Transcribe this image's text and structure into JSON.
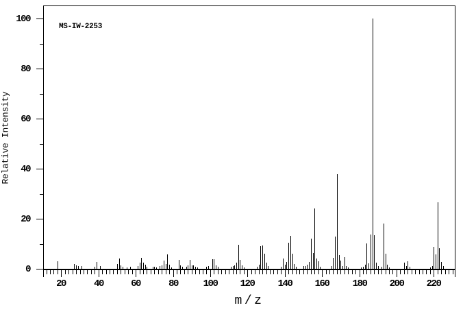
{
  "chart_data": {
    "type": "bar",
    "subtype": "mass-spectrum-stick-plot",
    "title": "MS-IW-2253",
    "xlabel": "m/z",
    "ylabel": "Relative Intensity",
    "xlim": [
      10,
      231
    ],
    "ylim": [
      0,
      105
    ],
    "x_major_ticks": [
      20,
      40,
      60,
      80,
      100,
      120,
      140,
      160,
      180,
      200,
      220
    ],
    "x_minor_step": 2,
    "y_major_ticks": [
      0,
      20,
      40,
      60,
      80,
      100
    ],
    "y_minor_step": 10,
    "grid": false,
    "legend": false,
    "base_peak_mz": 187,
    "peaks": [
      [
        18,
        3.0
      ],
      [
        27,
        2.0
      ],
      [
        28,
        1.4
      ],
      [
        29,
        1.0
      ],
      [
        31,
        1.0
      ],
      [
        38,
        0.8
      ],
      [
        39,
        2.7
      ],
      [
        41,
        1.2
      ],
      [
        50,
        1.9
      ],
      [
        51,
        4.1
      ],
      [
        52,
        1.4
      ],
      [
        53,
        0.7
      ],
      [
        55,
        0.6
      ],
      [
        57,
        0.7
      ],
      [
        61,
        1.0
      ],
      [
        62,
        2.4
      ],
      [
        63,
        4.3
      ],
      [
        64,
        2.6
      ],
      [
        65,
        1.7
      ],
      [
        66,
        0.9
      ],
      [
        69,
        0.7
      ],
      [
        70,
        0.9
      ],
      [
        71,
        0.6
      ],
      [
        73,
        1.1
      ],
      [
        74,
        1.4
      ],
      [
        75,
        3.4
      ],
      [
        76,
        2.0
      ],
      [
        77,
        5.8
      ],
      [
        78,
        1.7
      ],
      [
        79,
        0.6
      ],
      [
        83,
        3.5
      ],
      [
        84,
        1.4
      ],
      [
        85,
        0.8
      ],
      [
        87,
        0.9
      ],
      [
        88,
        1.5
      ],
      [
        89,
        3.6
      ],
      [
        90,
        1.5
      ],
      [
        91,
        1.4
      ],
      [
        92,
        0.9
      ],
      [
        93,
        0.6
      ],
      [
        98,
        0.7
      ],
      [
        99,
        1.0
      ],
      [
        101,
        3.9
      ],
      [
        102,
        3.9
      ],
      [
        103,
        1.5
      ],
      [
        104,
        0.7
      ],
      [
        111,
        0.7
      ],
      [
        112,
        1.0
      ],
      [
        113,
        1.5
      ],
      [
        114,
        2.6
      ],
      [
        115,
        9.5
      ],
      [
        116,
        3.6
      ],
      [
        117,
        1.3
      ],
      [
        118,
        0.6
      ],
      [
        125,
        0.9
      ],
      [
        126,
        1.6
      ],
      [
        127,
        9.0
      ],
      [
        128,
        9.3
      ],
      [
        129,
        6.0
      ],
      [
        130,
        2.6
      ],
      [
        131,
        1.1
      ],
      [
        138,
        0.8
      ],
      [
        139,
        4.2
      ],
      [
        140,
        1.7
      ],
      [
        141,
        2.7
      ],
      [
        142,
        10.5
      ],
      [
        143,
        13.1
      ],
      [
        144,
        6.0
      ],
      [
        145,
        1.9
      ],
      [
        146,
        0.7
      ],
      [
        150,
        1.1
      ],
      [
        151,
        1.0
      ],
      [
        152,
        1.6
      ],
      [
        153,
        2.8
      ],
      [
        154,
        12.0
      ],
      [
        155,
        6.4
      ],
      [
        156,
        24.1
      ],
      [
        157,
        4.1
      ],
      [
        158,
        3.0
      ],
      [
        159,
        0.9
      ],
      [
        165,
        1.0
      ],
      [
        166,
        4.5
      ],
      [
        167,
        12.8
      ],
      [
        168,
        37.8
      ],
      [
        169,
        5.5
      ],
      [
        170,
        3.2
      ],
      [
        171,
        1.0
      ],
      [
        172,
        4.6
      ],
      [
        173,
        1.2
      ],
      [
        174,
        0.6
      ],
      [
        181,
        0.5
      ],
      [
        182,
        0.7
      ],
      [
        183,
        1.7
      ],
      [
        184,
        10.1
      ],
      [
        185,
        2.2
      ],
      [
        186,
        13.6
      ],
      [
        187,
        100.0
      ],
      [
        188,
        13.4
      ],
      [
        189,
        2.6
      ],
      [
        190,
        1.1
      ],
      [
        192,
        0.8
      ],
      [
        193,
        18.2
      ],
      [
        194,
        6.0
      ],
      [
        195,
        1.7
      ],
      [
        196,
        0.5
      ],
      [
        204,
        2.6
      ],
      [
        205,
        1.1
      ],
      [
        206,
        3.0
      ],
      [
        207,
        0.8
      ],
      [
        218,
        0.6
      ],
      [
        219,
        1.1
      ],
      [
        220,
        8.7
      ],
      [
        221,
        5.8
      ],
      [
        222,
        26.6
      ],
      [
        223,
        8.2
      ],
      [
        224,
        2.8
      ],
      [
        225,
        1.0
      ]
    ]
  },
  "colors": {
    "foreground": "#000000",
    "background": "#ffffff"
  }
}
